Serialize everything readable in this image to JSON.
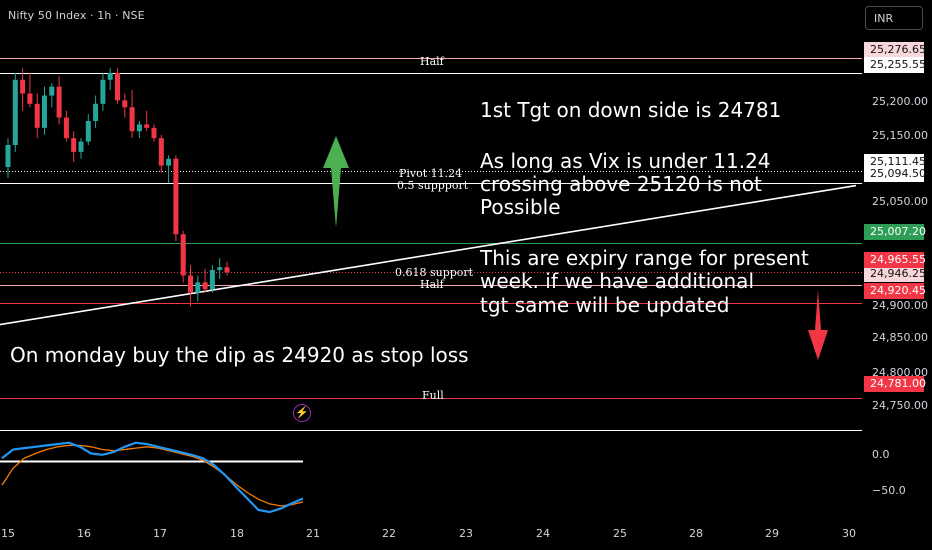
{
  "header": {
    "title": "Nifty 50 Index · 1h · NSE"
  },
  "currency_button": {
    "label": "INR"
  },
  "level_labels": {
    "half_top": "Half",
    "pivot": "Pivot  11.24",
    "support_05": "0.5 suppport",
    "support_0618": "0.618 support",
    "half_mid": "Half",
    "full": "Full"
  },
  "notes": {
    "tgt": "1st Tgt on down side is 24781",
    "vix": [
      "As long as Vix is under 11.24",
      "crossing above 25120 is not",
      "Possible"
    ],
    "expiry": [
      "This are expiry range for present",
      "week. if we have additional",
      "tgt same will be updated"
    ],
    "monday": "On monday buy the dip as 24920 as stop loss"
  },
  "price_boxes": [
    {
      "label": "25,276.65",
      "bg": "#f8d7da",
      "fg": "#111111"
    },
    {
      "label": "25,255.55",
      "bg": "#ffffff",
      "fg": "#111111"
    },
    {
      "label": "25,111.45",
      "bg": "#ffffff",
      "fg": "#111111"
    },
    {
      "label": "25,094.50",
      "bg": "#ffffff",
      "fg": "#111111"
    },
    {
      "label": "25,007.20",
      "bg": "#2e9e57",
      "fg": "#ffffff"
    },
    {
      "label": "24,965.55",
      "bg": "#f23645",
      "fg": "#ffffff"
    },
    {
      "label": "24,946.25",
      "bg": "#f8d7da",
      "fg": "#111111"
    },
    {
      "label": "24,920.45",
      "bg": "#f23645",
      "fg": "#ffffff"
    },
    {
      "label": "24,781.00",
      "bg": "#f23645",
      "fg": "#ffffff"
    }
  ],
  "price_ticks": [
    "25,200.00",
    "25,150.00",
    "25,050.00",
    "24,900.00",
    "24,850.00",
    "24,800.00",
    "24,750.00"
  ],
  "osc_ticks": [
    "0.0",
    "−50.0"
  ],
  "x_ticks": [
    "15",
    "16",
    "17",
    "18",
    "21",
    "22",
    "23",
    "24",
    "25",
    "28",
    "29",
    "30"
  ],
  "colors": {
    "up": "#26a69a",
    "down": "#f23645",
    "arrow_up": "#4caf50",
    "arrow_down": "#f23645",
    "osc_blue": "#2196f3",
    "osc_orange": "#f57c00"
  },
  "chart_data": {
    "type": "candlestick",
    "title": "Nifty 50 Index · 1h · NSE",
    "x_categories": [
      "15",
      "16",
      "17",
      "18",
      "21",
      "22",
      "23",
      "24",
      "25",
      "28",
      "29",
      "30"
    ],
    "ylim": [
      24735,
      25300
    ],
    "candles": [
      {
        "o": 25118,
        "h": 25160,
        "l": 25102,
        "c": 25150
      },
      {
        "o": 25150,
        "h": 25255,
        "l": 25140,
        "c": 25245
      },
      {
        "o": 25245,
        "h": 25262,
        "l": 25200,
        "c": 25225
      },
      {
        "o": 25225,
        "h": 25255,
        "l": 25205,
        "c": 25210
      },
      {
        "o": 25210,
        "h": 25225,
        "l": 25160,
        "c": 25175
      },
      {
        "o": 25175,
        "h": 25235,
        "l": 25165,
        "c": 25222
      },
      {
        "o": 25222,
        "h": 25240,
        "l": 25205,
        "c": 25235
      },
      {
        "o": 25235,
        "h": 25250,
        "l": 25180,
        "c": 25190
      },
      {
        "o": 25190,
        "h": 25200,
        "l": 25155,
        "c": 25160
      },
      {
        "o": 25160,
        "h": 25170,
        "l": 25125,
        "c": 25140
      },
      {
        "o": 25140,
        "h": 25160,
        "l": 25130,
        "c": 25155
      },
      {
        "o": 25155,
        "h": 25195,
        "l": 25150,
        "c": 25185
      },
      {
        "o": 25185,
        "h": 25222,
        "l": 25175,
        "c": 25210
      },
      {
        "o": 25210,
        "h": 25255,
        "l": 25200,
        "c": 25245
      },
      {
        "o": 25245,
        "h": 25262,
        "l": 25230,
        "c": 25255
      },
      {
        "o": 25255,
        "h": 25262,
        "l": 25210,
        "c": 25215
      },
      {
        "o": 25215,
        "h": 25225,
        "l": 25190,
        "c": 25205
      },
      {
        "o": 25205,
        "h": 25230,
        "l": 25160,
        "c": 25170
      },
      {
        "o": 25170,
        "h": 25185,
        "l": 25160,
        "c": 25180
      },
      {
        "o": 25180,
        "h": 25200,
        "l": 25170,
        "c": 25175
      },
      {
        "o": 25175,
        "h": 25180,
        "l": 25155,
        "c": 25160
      },
      {
        "o": 25160,
        "h": 25165,
        "l": 25110,
        "c": 25120
      },
      {
        "o": 25120,
        "h": 25135,
        "l": 25095,
        "c": 25130
      },
      {
        "o": 25130,
        "h": 25135,
        "l": 25010,
        "c": 25020
      },
      {
        "o": 25020,
        "h": 25025,
        "l": 24950,
        "c": 24960
      },
      {
        "o": 24960,
        "h": 24975,
        "l": 24915,
        "c": 24935
      },
      {
        "o": 24935,
        "h": 24960,
        "l": 24922,
        "c": 24950
      },
      {
        "o": 24950,
        "h": 24970,
        "l": 24935,
        "c": 24940
      },
      {
        "o": 24940,
        "h": 24975,
        "l": 24935,
        "c": 24968
      },
      {
        "o": 24968,
        "h": 24985,
        "l": 24955,
        "c": 24972
      },
      {
        "o": 24972,
        "h": 24980,
        "l": 24960,
        "c": 24965
      }
    ],
    "horizontal_levels": [
      {
        "price": 25276.65,
        "color": "#f8a5ab"
      },
      {
        "price": 25255.55,
        "color": "#ffffff"
      },
      {
        "price": 25111.45,
        "color": "#ffffff",
        "dotted": true
      },
      {
        "price": 25094.5,
        "color": "#ffffff"
      },
      {
        "price": 25007.2,
        "color": "#2e9e57"
      },
      {
        "price": 24965.55,
        "color": "#f23645",
        "dotted": true
      },
      {
        "price": 24946.25,
        "color": "#f8a5ab"
      },
      {
        "price": 24920.45,
        "color": "#f23645"
      },
      {
        "price": 24781.0,
        "color": "#f23645"
      },
      {
        "price": 24735.0,
        "color": "#ffffff"
      }
    ],
    "trendline": {
      "from": {
        "x": -0.3,
        "y": 24885
      },
      "to": {
        "x": 11.1,
        "y": 25091
      }
    },
    "oscillator": {
      "ylim": [
        -75,
        38
      ],
      "level": 0,
      "blue": [
        5,
        18,
        20,
        22,
        24,
        26,
        28,
        22,
        12,
        10,
        14,
        22,
        28,
        26,
        22,
        18,
        14,
        10,
        5,
        -5,
        -20,
        -38,
        -55,
        -72,
        -75,
        -70,
        -62,
        -55
      ],
      "orange": [
        -35,
        -10,
        5,
        12,
        18,
        22,
        24,
        24,
        22,
        18,
        16,
        18,
        20,
        22,
        20,
        16,
        12,
        8,
        2,
        -8,
        -20,
        -34,
        -46,
        -56,
        -63,
        -66,
        -64,
        -60
      ]
    }
  }
}
